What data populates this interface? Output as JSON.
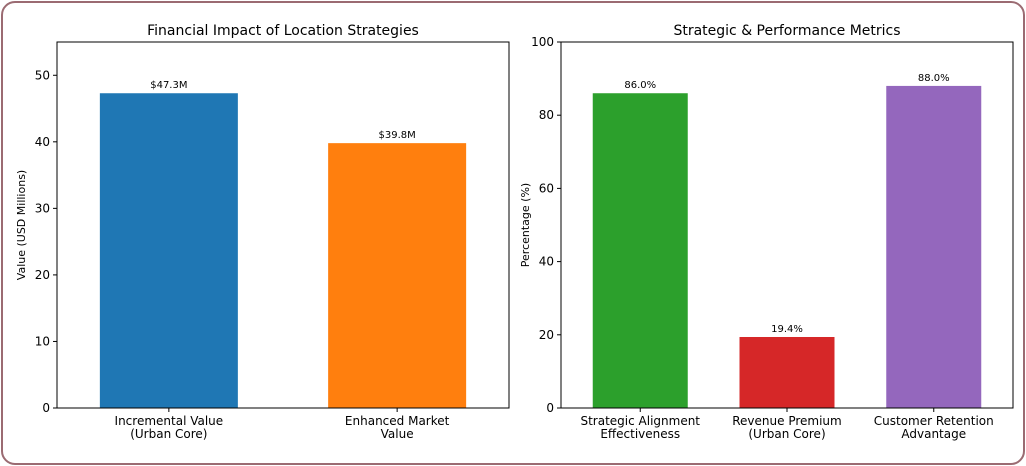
{
  "chart_data": [
    {
      "type": "bar",
      "title": "Financial Impact of Location Strategies",
      "xlabel": "",
      "ylabel": "Value (USD Millions)",
      "ylim": [
        0,
        55
      ],
      "yticks": [
        "0",
        "10",
        "20",
        "30",
        "40",
        "50"
      ],
      "categories": [
        [
          "Incremental Value",
          "(Urban Core)"
        ],
        [
          "Enhanced Market",
          "Value"
        ]
      ],
      "values": [
        47.3,
        39.8
      ],
      "data_labels": [
        "$47.3M",
        "$39.8M"
      ],
      "colors": [
        "#1f77b4",
        "#ff7f0e"
      ],
      "grid": false
    },
    {
      "type": "bar",
      "title": "Strategic & Performance Metrics",
      "xlabel": "",
      "ylabel": "Percentage (%)",
      "ylim": [
        0,
        100
      ],
      "yticks": [
        "0",
        "20",
        "40",
        "60",
        "80",
        "100"
      ],
      "categories": [
        [
          "Strategic Alignment",
          "Effectiveness"
        ],
        [
          "Revenue Premium",
          "(Urban Core)"
        ],
        [
          "Customer Retention",
          "Advantage"
        ]
      ],
      "values": [
        86.0,
        19.4,
        88.0
      ],
      "data_labels": [
        "86.0%",
        "19.4%",
        "88.0%"
      ],
      "colors": [
        "#2ca02c",
        "#d62728",
        "#9467bd"
      ],
      "grid": false
    }
  ]
}
